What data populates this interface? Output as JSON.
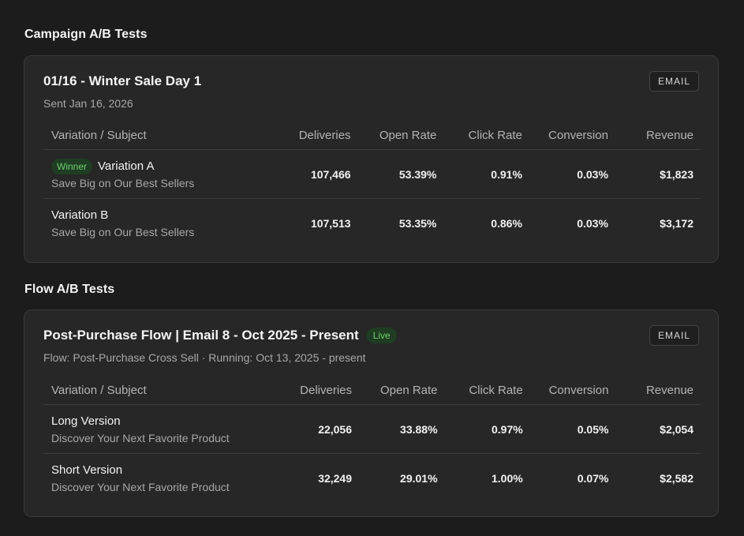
{
  "campaign": {
    "section_title": "Campaign A/B Tests",
    "card": {
      "title": "01/16 - Winter Sale Day 1",
      "subtitle": "Sent Jan 16, 2026",
      "type_badge": "EMAIL",
      "columns": [
        "Variation / Subject",
        "Deliveries",
        "Open Rate",
        "Click Rate",
        "Conversion",
        "Revenue"
      ],
      "rows": [
        {
          "winner_label": "Winner",
          "name": "Variation A",
          "subject": "Save Big on Our Best Sellers",
          "deliveries": "107,466",
          "open_rate": "53.39%",
          "click_rate": "0.91%",
          "conversion": "0.03%",
          "revenue": "$1,823"
        },
        {
          "name": "Variation B",
          "subject": "Save Big on Our Best Sellers",
          "deliveries": "107,513",
          "open_rate": "53.35%",
          "click_rate": "0.86%",
          "conversion": "0.03%",
          "revenue": "$3,172"
        }
      ]
    }
  },
  "flow": {
    "section_title": "Flow A/B Tests",
    "card": {
      "title": "Post-Purchase Flow | Email 8 - Oct 2025 - Present",
      "status_badge": "Live",
      "subtitle": "Flow: Post-Purchase Cross Sell · Running: Oct 13, 2025 - present",
      "type_badge": "EMAIL",
      "columns": [
        "Variation / Subject",
        "Deliveries",
        "Open Rate",
        "Click Rate",
        "Conversion",
        "Revenue"
      ],
      "rows": [
        {
          "name": "Long Version",
          "subject": "Discover Your Next Favorite Product",
          "deliveries": "22,056",
          "open_rate": "33.88%",
          "click_rate": "0.97%",
          "conversion": "0.05%",
          "revenue": "$2,054"
        },
        {
          "name": "Short Version",
          "subject": "Discover Your Next Favorite Product",
          "deliveries": "32,249",
          "open_rate": "29.01%",
          "click_rate": "1.00%",
          "conversion": "0.07%",
          "revenue": "$2,582"
        }
      ]
    }
  },
  "colors": {
    "background": "#1c1c1c",
    "card": "#272727",
    "badge_green_bg": "#1f3d22",
    "badge_green_text": "#6fce6f"
  }
}
